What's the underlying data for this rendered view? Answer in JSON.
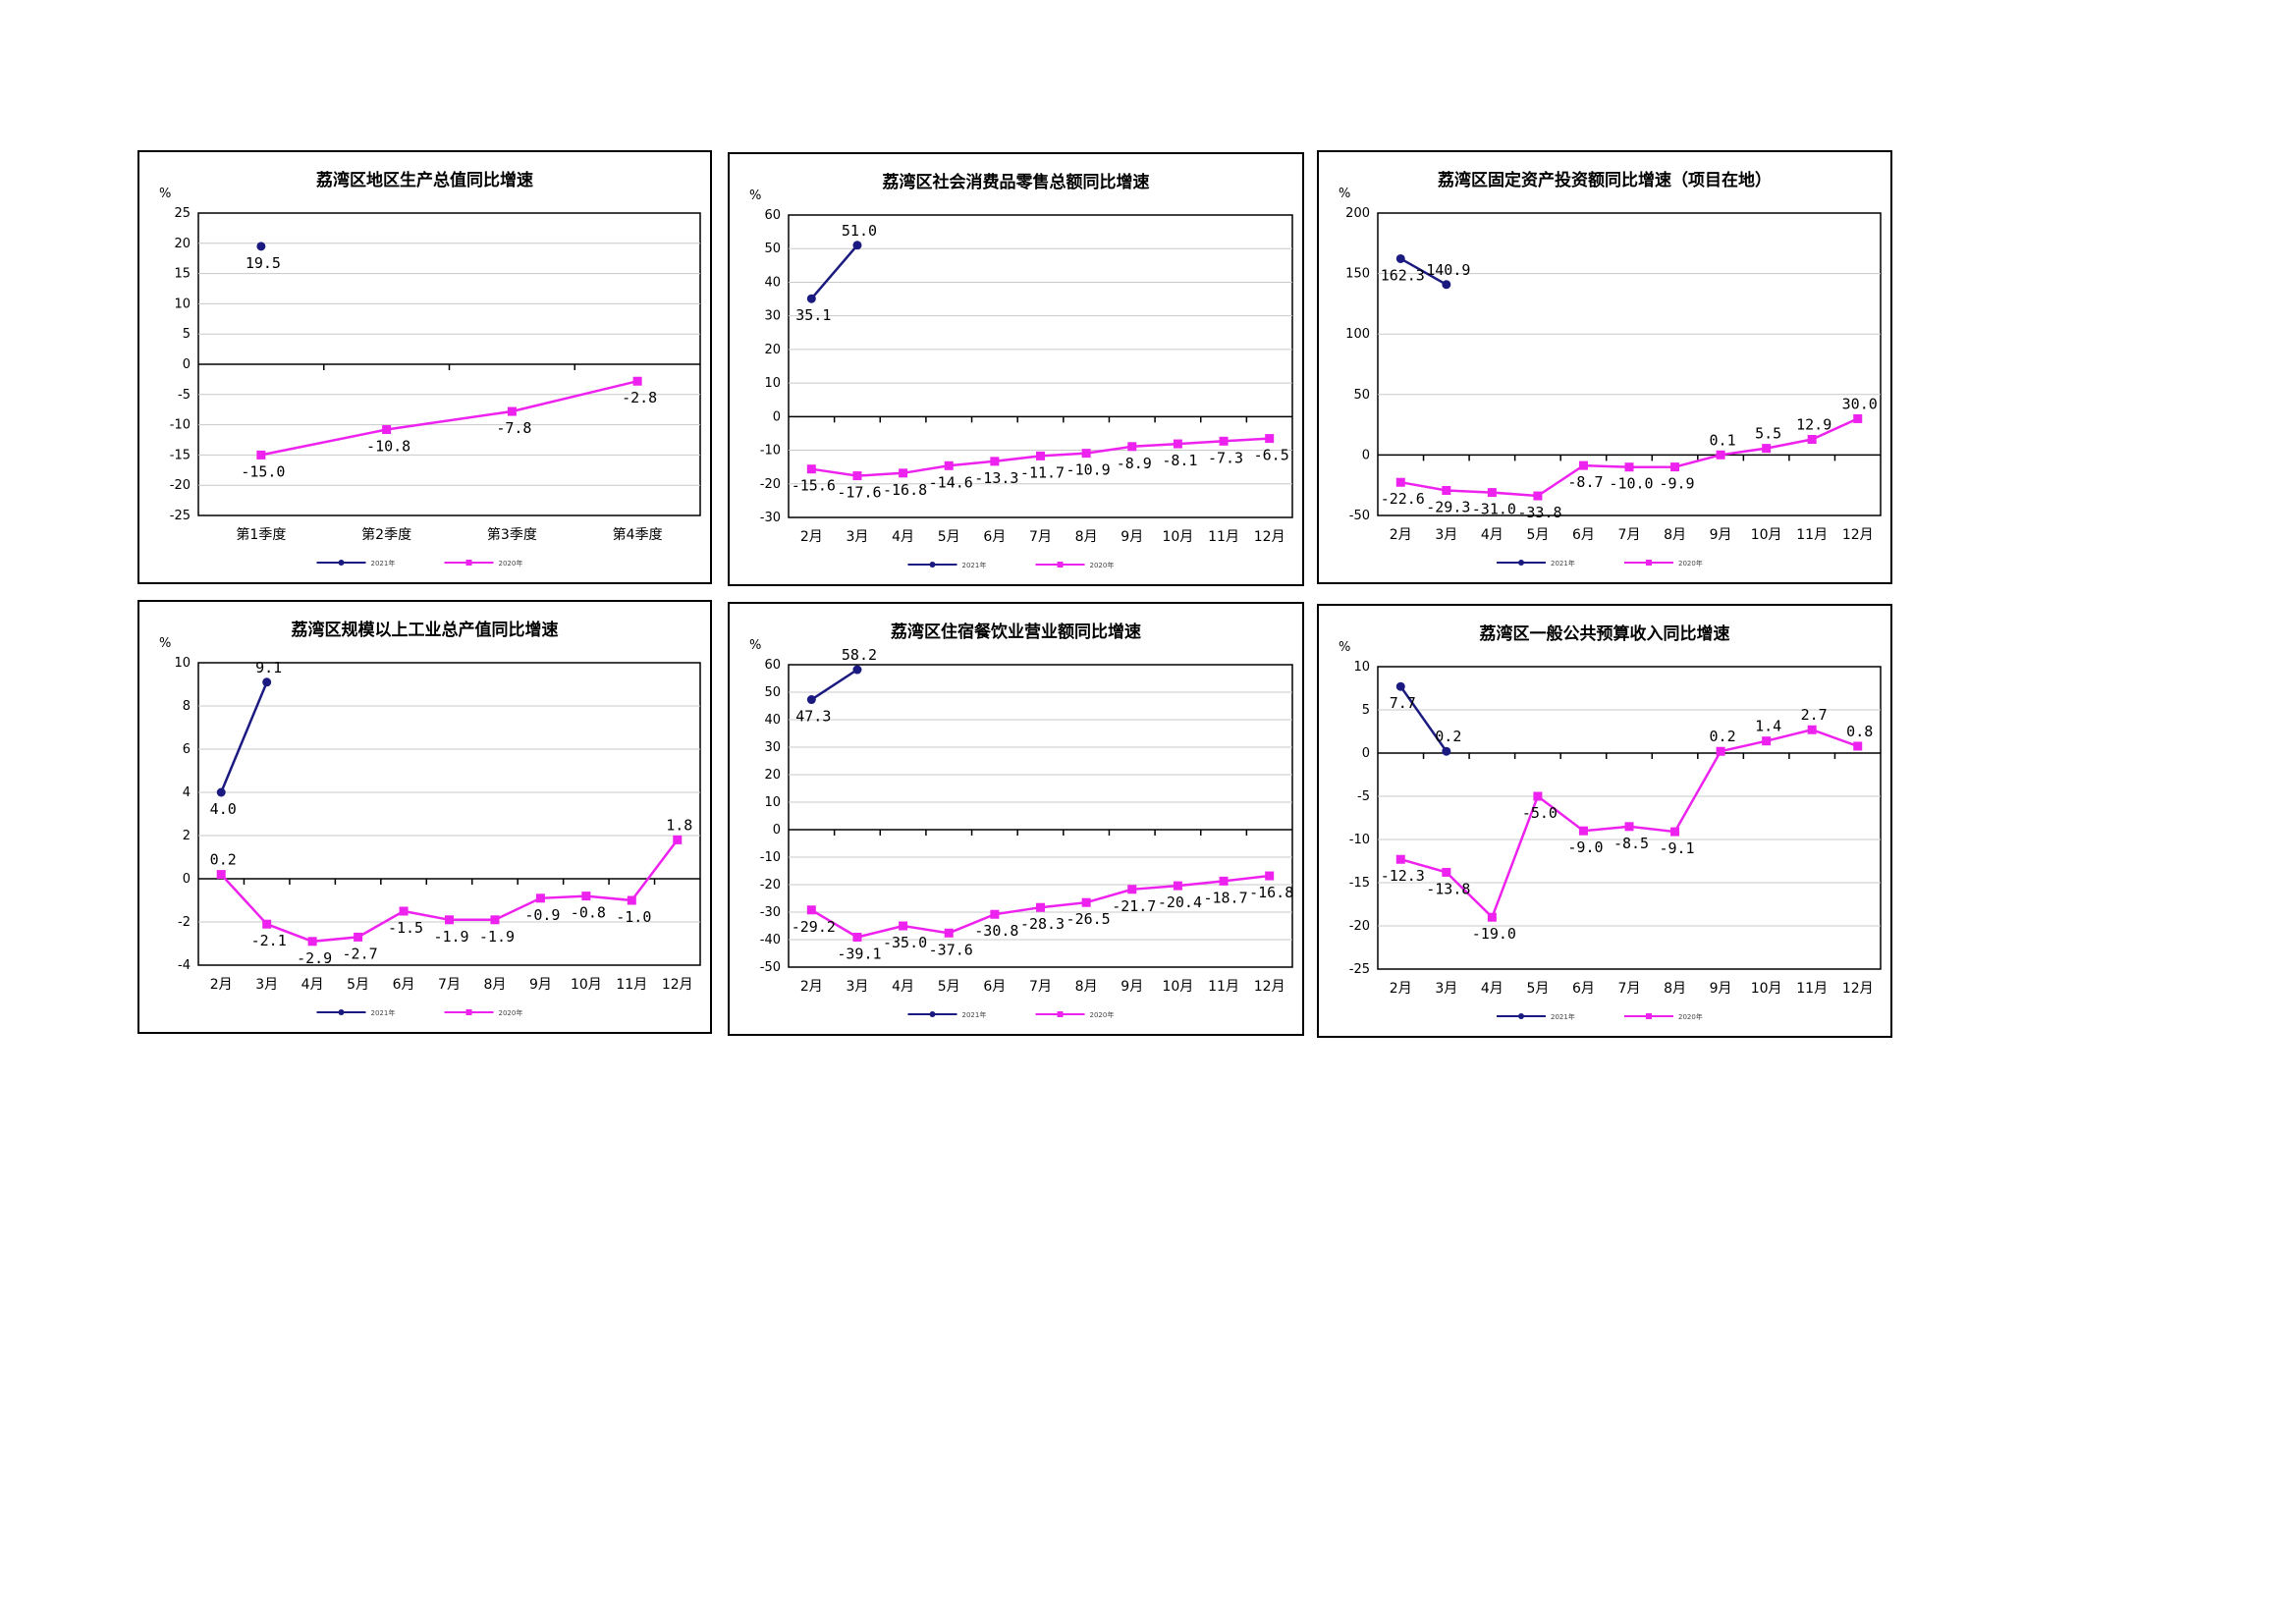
{
  "colors": {
    "series_2021": "#1a1a80",
    "series_2020": "#ee22ee",
    "grid": "#c8c8c8",
    "axis": "#000000"
  },
  "chart_data": [
    {
      "type": "line",
      "title": "荔湾区地区生产总值同比增速",
      "unit": "%",
      "categories": [
        "第1季度",
        "第2季度",
        "第3季度",
        "第4季度"
      ],
      "ylim": [
        -25,
        25
      ],
      "ystep": 5,
      "series": [
        {
          "name": "2021年",
          "values": [
            19.5,
            null,
            null,
            null
          ],
          "labels": [
            "19.5",
            null,
            null,
            null
          ]
        },
        {
          "name": "2020年",
          "values": [
            -15.0,
            -10.8,
            -7.8,
            -2.8
          ],
          "labels": [
            "-15.0",
            "-10.8",
            "-7.8",
            "-2.8"
          ]
        }
      ]
    },
    {
      "type": "line",
      "title": "荔湾区社会消费品零售总额同比增速",
      "unit": "%",
      "categories": [
        "2月",
        "3月",
        "4月",
        "5月",
        "6月",
        "7月",
        "8月",
        "9月",
        "10月",
        "11月",
        "12月"
      ],
      "ylim": [
        -30,
        60
      ],
      "ystep": 10,
      "series": [
        {
          "name": "2021年",
          "values": [
            35.1,
            51.0,
            null,
            null,
            null,
            null,
            null,
            null,
            null,
            null,
            null
          ],
          "labels": [
            "35.1",
            "51.0",
            null,
            null,
            null,
            null,
            null,
            null,
            null,
            null,
            null
          ]
        },
        {
          "name": "2020年",
          "values": [
            -15.6,
            -17.6,
            -16.8,
            -14.6,
            -13.3,
            -11.7,
            -10.9,
            -8.9,
            -8.1,
            -7.3,
            -6.5
          ],
          "labels": [
            "-15.6",
            "-17.6",
            "-16.8",
            "-14.6",
            "-13.3",
            "-11.7",
            "-10.9",
            "-8.9",
            "-8.1",
            "-7.3",
            "-6.5"
          ]
        }
      ]
    },
    {
      "type": "line",
      "title": "荔湾区固定资产投资额同比增速（项目在地）",
      "unit": "%",
      "categories": [
        "2月",
        "3月",
        "4月",
        "5月",
        "6月",
        "7月",
        "8月",
        "9月",
        "10月",
        "11月",
        "12月"
      ],
      "ylim": [
        -50,
        200
      ],
      "ystep": 50,
      "series": [
        {
          "name": "2021年",
          "values": [
            162.3,
            140.9,
            null,
            null,
            null,
            null,
            null,
            null,
            null,
            null,
            null
          ],
          "labels": [
            "162.3",
            "140.9",
            null,
            null,
            null,
            null,
            null,
            null,
            null,
            null,
            null
          ]
        },
        {
          "name": "2020年",
          "values": [
            -22.6,
            -29.3,
            -31.0,
            -33.8,
            -8.7,
            -10.0,
            -9.9,
            0.1,
            5.5,
            12.9,
            30.0
          ],
          "labels": [
            "-22.6",
            "-29.3",
            "-31.0",
            "-33.8",
            "-8.7",
            "-10.0",
            "-9.9",
            "0.1",
            "5.5",
            "12.9",
            "30.0"
          ]
        }
      ]
    },
    {
      "type": "line",
      "title": "荔湾区规模以上工业总产值同比增速",
      "unit": "%",
      "categories": [
        "2月",
        "3月",
        "4月",
        "5月",
        "6月",
        "7月",
        "8月",
        "9月",
        "10月",
        "11月",
        "12月"
      ],
      "ylim": [
        -4,
        10
      ],
      "ystep": 2,
      "series": [
        {
          "name": "2021年",
          "values": [
            4.0,
            9.1,
            null,
            null,
            null,
            null,
            null,
            null,
            null,
            null,
            null
          ],
          "labels": [
            "4.0",
            "9.1",
            null,
            null,
            null,
            null,
            null,
            null,
            null,
            null,
            null
          ]
        },
        {
          "name": "2020年",
          "values": [
            0.2,
            -2.1,
            -2.9,
            -2.7,
            -1.5,
            -1.9,
            -1.9,
            -0.9,
            -0.8,
            -1.0,
            1.8
          ],
          "labels": [
            "0.2",
            "-2.1",
            "-2.9",
            "-2.7",
            "-1.5",
            "-1.9",
            "-1.9",
            "-0.9",
            "-0.8",
            "-1.0",
            "1.8"
          ]
        }
      ]
    },
    {
      "type": "line",
      "title": "荔湾区住宿餐饮业营业额同比增速",
      "unit": "%",
      "categories": [
        "2月",
        "3月",
        "4月",
        "5月",
        "6月",
        "7月",
        "8月",
        "9月",
        "10月",
        "11月",
        "12月"
      ],
      "ylim": [
        -50,
        60
      ],
      "ystep": 10,
      "series": [
        {
          "name": "2021年",
          "values": [
            47.3,
            58.2,
            null,
            null,
            null,
            null,
            null,
            null,
            null,
            null,
            null
          ],
          "labels": [
            "47.3",
            "58.2",
            null,
            null,
            null,
            null,
            null,
            null,
            null,
            null,
            null
          ]
        },
        {
          "name": "2020年",
          "values": [
            -29.2,
            -39.1,
            -35.0,
            -37.6,
            -30.8,
            -28.3,
            -26.5,
            -21.7,
            -20.4,
            -18.7,
            -16.8
          ],
          "labels": [
            "-29.2",
            "-39.1",
            "-35.0",
            "-37.6",
            "-30.8",
            "-28.3",
            "-26.5",
            "-21.7",
            "-20.4",
            "-18.7",
            "-16.8"
          ]
        }
      ]
    },
    {
      "type": "line",
      "title": "荔湾区一般公共预算收入同比增速",
      "unit": "%",
      "categories": [
        "2月",
        "3月",
        "4月",
        "5月",
        "6月",
        "7月",
        "8月",
        "9月",
        "10月",
        "11月",
        "12月"
      ],
      "ylim": [
        -25,
        10
      ],
      "ystep": 5,
      "series": [
        {
          "name": "2021年",
          "values": [
            7.7,
            0.2,
            null,
            null,
            null,
            null,
            null,
            null,
            null,
            null,
            null
          ],
          "labels": [
            "7.7",
            "0.2",
            null,
            null,
            null,
            null,
            null,
            null,
            null,
            null,
            null
          ]
        },
        {
          "name": "2020年",
          "values": [
            -12.3,
            -13.8,
            -19.0,
            -5.0,
            -9.0,
            -8.5,
            -9.1,
            0.2,
            1.4,
            2.7,
            0.8
          ],
          "labels": [
            "-12.3",
            "-13.8",
            "-19.0",
            "-5.0",
            "-9.0",
            "-8.5",
            "-9.1",
            "0.2",
            "1.4",
            "2.7",
            "0.8"
          ]
        }
      ]
    }
  ]
}
